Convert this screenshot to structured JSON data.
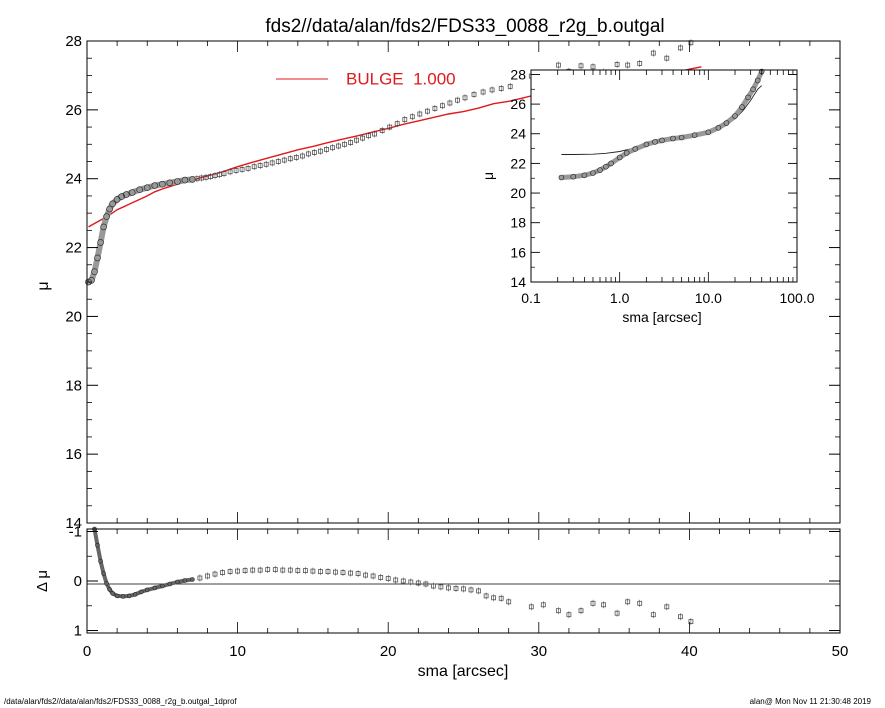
{
  "title": "fds2//data/alan/fds2/FDS33_0088_r2g_b.outgal",
  "footer_left": "/data/alan/fds2//data/alan/fds2/FDS33_0088_r2g_b.outgal_1dprof",
  "footer_right": "alan@  Mon Nov 11 21:30:48 2019",
  "colors": {
    "model": "#e0191b",
    "data": "#555555",
    "axes": "#000000"
  },
  "chart_data": [
    {
      "id": "main",
      "type": "scatter",
      "ylabel": "μ",
      "xlim": [
        0,
        50
      ],
      "ylim": [
        28,
        14
      ],
      "xticks": [
        "0",
        "10",
        "20",
        "30",
        "40",
        "50"
      ],
      "yticks": [
        "14",
        "16",
        "18",
        "20",
        "22",
        "24",
        "26",
        "28"
      ],
      "legend": {
        "label": "BULGE  1.000",
        "placement": "top-center"
      },
      "series": [
        {
          "name": "BULGE  1.000",
          "kind": "line",
          "x": [
            0.1,
            0.5,
            1,
            1.5,
            2,
            2.5,
            3,
            3.5,
            4,
            4.5,
            5,
            5.5,
            6,
            6.5,
            7,
            8,
            9,
            10,
            11,
            12,
            13,
            14,
            15,
            16,
            17,
            18,
            19,
            20,
            21,
            22,
            23,
            24,
            25,
            26,
            27,
            28,
            29,
            30,
            31,
            32,
            33,
            34,
            35,
            36,
            37,
            38,
            39,
            40,
            40.8
          ],
          "y": [
            22.6,
            22.7,
            22.82,
            22.95,
            23.1,
            23.2,
            23.3,
            23.4,
            23.5,
            23.62,
            23.7,
            23.77,
            23.84,
            23.9,
            23.96,
            24.08,
            24.2,
            24.35,
            24.48,
            24.6,
            24.72,
            24.84,
            24.94,
            25.05,
            25.15,
            25.25,
            25.36,
            25.46,
            25.58,
            25.68,
            25.78,
            25.88,
            25.95,
            26.05,
            26.18,
            26.25,
            26.35,
            26.46,
            26.55,
            26.5,
            26.68,
            26.7,
            26.82,
            26.8,
            26.92,
            26.98,
            27.08,
            27.18,
            27.25
          ]
        },
        {
          "name": "",
          "kind": "profile-thick",
          "x": [
            0.1,
            0.3,
            0.5,
            0.7,
            0.9,
            1.1,
            1.3,
            1.5,
            1.7,
            2,
            2.3,
            2.6,
            3,
            3.5,
            4,
            4.5,
            5,
            5.5,
            6,
            6.5,
            7
          ],
          "y": [
            21.0,
            21.05,
            21.3,
            21.7,
            22.15,
            22.6,
            22.9,
            23.12,
            23.27,
            23.4,
            23.48,
            23.54,
            23.6,
            23.68,
            23.74,
            23.8,
            23.84,
            23.88,
            23.92,
            23.96,
            23.98
          ]
        },
        {
          "name": "",
          "kind": "points",
          "x": [
            7.3,
            7.6,
            7.9,
            8.2,
            8.5,
            8.8,
            9.1,
            9.5,
            9.9,
            10.3,
            10.7,
            11.1,
            11.5,
            11.9,
            12.3,
            12.7,
            13.1,
            13.5,
            13.9,
            14.3,
            14.7,
            15.1,
            15.5,
            15.9,
            16.3,
            16.7,
            17.1,
            17.5,
            17.9,
            18.3,
            18.7,
            19.1,
            19.6,
            20.1,
            20.6,
            21.1,
            21.6,
            22.1,
            22.6,
            23.1,
            23.6,
            24.1,
            24.6,
            25.1,
            25.7,
            26.3,
            26.9,
            27.5,
            28.1,
            29.5,
            30.3,
            31.3,
            32.0,
            32.8,
            33.6,
            34.3,
            35.2,
            35.9,
            36.7,
            37.6,
            38.5,
            39.4,
            40.1
          ],
          "y": [
            24.0,
            24.02,
            24.04,
            24.06,
            24.09,
            24.12,
            24.15,
            24.2,
            24.24,
            24.27,
            24.3,
            24.35,
            24.38,
            24.42,
            24.46,
            24.5,
            24.54,
            24.58,
            24.62,
            24.66,
            24.72,
            24.76,
            24.8,
            24.85,
            24.9,
            24.95,
            25.0,
            25.05,
            25.12,
            25.18,
            25.25,
            25.3,
            25.4,
            25.5,
            25.6,
            25.72,
            25.8,
            25.88,
            25.96,
            26.04,
            26.12,
            26.2,
            26.28,
            26.35,
            26.45,
            26.52,
            26.58,
            26.62,
            26.68,
            26.98,
            26.9,
            27.3,
            27.12,
            27.28,
            27.25,
            27.1,
            27.32,
            27.3,
            27.35,
            27.65,
            27.5,
            27.8,
            27.95
          ]
        }
      ]
    },
    {
      "id": "residual",
      "type": "scatter",
      "ylabel": "Δ μ",
      "xlabel": "sma [arcsec]",
      "xlim": [
        0,
        50
      ],
      "ylim": [
        -1.05,
        1.05
      ],
      "yticks": [
        "-1",
        "0",
        "1"
      ],
      "series": [
        {
          "name": "",
          "kind": "profile-thick",
          "x": [
            0.5,
            0.7,
            0.9,
            1.1,
            1.3,
            1.5,
            1.7,
            2,
            2.4,
            2.8,
            3.2,
            3.6,
            4,
            4.5,
            5,
            5.5,
            6,
            6.5,
            7
          ],
          "y": [
            -1.05,
            -0.72,
            -0.4,
            -0.15,
            0.05,
            0.17,
            0.25,
            0.3,
            0.31,
            0.3,
            0.27,
            0.22,
            0.18,
            0.14,
            0.1,
            0.06,
            0.02,
            -0.01,
            -0.03
          ]
        },
        {
          "name": "",
          "kind": "points",
          "x": [
            7.5,
            8,
            8.5,
            9,
            9.5,
            10,
            10.5,
            11,
            11.5,
            12,
            12.5,
            13,
            13.5,
            14,
            14.5,
            15,
            15.5,
            16,
            16.5,
            17,
            17.5,
            18,
            18.5,
            19,
            19.5,
            20,
            20.5,
            21,
            21.5,
            22,
            22.5,
            23,
            23.5,
            24,
            24.5,
            25,
            25.5,
            26,
            26.5,
            27,
            27.5,
            28,
            29.5,
            30.3,
            31.3,
            32,
            32.8,
            33.6,
            34.3,
            35.2,
            35.9,
            36.7,
            37.6,
            38.5,
            39.4,
            40.1
          ],
          "y": [
            -0.06,
            -0.1,
            -0.14,
            -0.17,
            -0.19,
            -0.2,
            -0.21,
            -0.22,
            -0.22,
            -0.23,
            -0.23,
            -0.22,
            -0.22,
            -0.21,
            -0.21,
            -0.2,
            -0.19,
            -0.19,
            -0.18,
            -0.17,
            -0.16,
            -0.15,
            -0.12,
            -0.1,
            -0.07,
            -0.05,
            -0.02,
            0.0,
            0.02,
            0.04,
            0.06,
            0.1,
            0.12,
            0.14,
            0.15,
            0.16,
            0.18,
            0.2,
            0.3,
            0.34,
            0.35,
            0.42,
            0.52,
            0.48,
            0.6,
            0.68,
            0.6,
            0.45,
            0.48,
            0.65,
            0.42,
            0.45,
            0.68,
            0.52,
            0.72,
            0.82
          ]
        }
      ]
    },
    {
      "id": "inset",
      "type": "scatter",
      "ylabel": "μ",
      "xlabel": "sma [arcsec]",
      "xscale": "log",
      "xlim": [
        0.1,
        100
      ],
      "ylim": [
        28.3,
        14
      ],
      "xticks": [
        "0.1",
        "1.0",
        "10.0",
        "100.0"
      ],
      "yticks": [
        "14",
        "16",
        "18",
        "20",
        "22",
        "24",
        "26",
        "28"
      ],
      "series": [
        {
          "name": "",
          "kind": "line",
          "x": [
            0.22,
            0.3,
            0.5,
            0.7,
            1,
            1.5,
            2,
            3,
            5,
            7,
            10,
            15,
            20,
            25,
            30,
            36,
            40
          ],
          "y": [
            22.6,
            22.6,
            22.62,
            22.68,
            22.8,
            23.05,
            23.3,
            23.55,
            23.75,
            23.88,
            24.05,
            24.5,
            25.0,
            25.6,
            26.25,
            27.0,
            27.25
          ]
        },
        {
          "name": "",
          "kind": "profile-thick",
          "x": [
            0.22,
            0.3,
            0.4,
            0.5,
            0.6,
            0.7,
            0.8,
            1,
            1.2,
            1.5,
            2,
            2.5,
            3,
            4,
            5,
            7,
            10,
            13,
            16,
            20,
            24,
            28,
            32,
            36,
            40
          ],
          "y": [
            21.05,
            21.1,
            21.2,
            21.35,
            21.55,
            21.78,
            22.0,
            22.4,
            22.7,
            22.98,
            23.28,
            23.45,
            23.55,
            23.68,
            23.75,
            23.9,
            24.1,
            24.4,
            24.72,
            25.2,
            25.8,
            26.45,
            27.0,
            27.6,
            28.2
          ]
        }
      ]
    }
  ]
}
